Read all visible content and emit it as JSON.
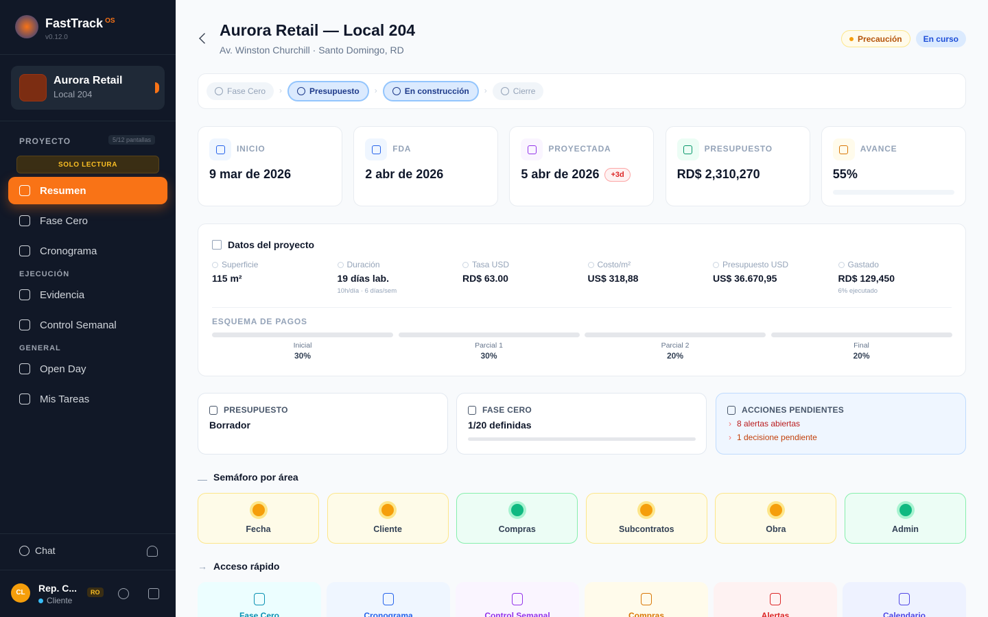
{
  "sidebar": {
    "brand": "FastTrack",
    "brand_badge": "OS",
    "version": "v0.12.0",
    "project": {
      "name": "Aurora Retail",
      "sub": "Local 204"
    },
    "section": "PROYECTO",
    "section_count": "5/12 pantallas",
    "readonly": "SOLO LECTURA",
    "groups": [
      {
        "title": null,
        "items": [
          {
            "label": "Resumen",
            "active": true
          },
          {
            "label": "Fase Cero",
            "active": false
          },
          {
            "label": "Cronograma",
            "active": false
          }
        ]
      },
      {
        "title": "EJECUCIÓN",
        "items": [
          {
            "label": "Evidencia",
            "active": false
          },
          {
            "label": "Control Semanal",
            "active": false
          }
        ]
      },
      {
        "title": "GENERAL",
        "items": [
          {
            "label": "Open Day",
            "active": false
          },
          {
            "label": "Mis Tareas",
            "active": false
          }
        ]
      }
    ],
    "chat": "Chat",
    "user": {
      "initials": "CL",
      "name": "Rep. C...",
      "role": "Cliente",
      "badge": "RO"
    }
  },
  "header": {
    "title": "Aurora Retail — Local 204",
    "subtitle": "Av. Winston Churchill · Santo Domingo, RD",
    "badges": [
      {
        "label": "Precaución",
        "tone": "amber"
      },
      {
        "label": "En curso",
        "tone": "blue"
      }
    ]
  },
  "phases": [
    {
      "label": "Fase Cero",
      "highlighted": false
    },
    {
      "label": "Presupuesto",
      "highlighted": true
    },
    {
      "label": "En construcción",
      "highlighted": true
    },
    {
      "label": "Cierre",
      "highlighted": false
    }
  ],
  "stats": [
    {
      "label": "INICIO",
      "value": "9 mar de 2026",
      "tone": "blue"
    },
    {
      "label": "FDA",
      "value": "2 abr de 2026",
      "tone": "blue"
    },
    {
      "label": "PROYECTADA",
      "value": "5 abr de 2026",
      "tag": "+3d",
      "tone": "purple"
    },
    {
      "label": "PRESUPUESTO",
      "value": "RD$ 2,310,270",
      "tone": "green"
    },
    {
      "label": "AVANCE",
      "value": "55%",
      "tone": "amber",
      "progress": true
    }
  ],
  "details": {
    "title": "Datos del proyecto",
    "fields": [
      {
        "label": "Superficie",
        "value": "115 m²"
      },
      {
        "label": "Duración",
        "value": "19 días lab.",
        "note": "10h/día · 6 días/sem"
      },
      {
        "label": "Tasa USD",
        "value": "RD$ 63.00"
      },
      {
        "label": "Costo/m²",
        "value": "US$ 318,88"
      },
      {
        "label": "Presupuesto USD",
        "value": "US$ 36.670,95"
      },
      {
        "label": "Gastado",
        "value": "RD$ 129,450",
        "note": "6% ejecutado"
      }
    ],
    "payments_title": "ESQUEMA DE PAGOS",
    "payments": [
      {
        "label": "Inicial",
        "value": "30%"
      },
      {
        "label": "Parcial 1",
        "value": "30%"
      },
      {
        "label": "Parcial 2",
        "value": "20%"
      },
      {
        "label": "Final",
        "value": "20%"
      }
    ]
  },
  "summary": {
    "budget": {
      "label": "PRESUPUESTO",
      "value": "Borrador"
    },
    "phase0": {
      "label": "FASE CERO",
      "value": "1/20 definidas"
    },
    "actions": {
      "label": "ACCIONES PENDIENTES",
      "items": [
        "8 alertas abiertas",
        "1 decisione pendiente"
      ]
    }
  },
  "traffic": {
    "title": "Semáforo por área",
    "items": [
      {
        "label": "Fecha",
        "status": "amber"
      },
      {
        "label": "Cliente",
        "status": "amber"
      },
      {
        "label": "Compras",
        "status": "green"
      },
      {
        "label": "Subcontratos",
        "status": "amber"
      },
      {
        "label": "Obra",
        "status": "amber"
      },
      {
        "label": "Admin",
        "status": "green"
      }
    ]
  },
  "quick": {
    "title": "Acceso rápido",
    "items": [
      {
        "label": "Fase Cero",
        "tone": "cyan"
      },
      {
        "label": "Cronograma",
        "tone": "blue"
      },
      {
        "label": "Control Semanal",
        "tone": "purple"
      },
      {
        "label": "Compras",
        "tone": "amber"
      },
      {
        "label": "Alertas",
        "tone": "red"
      },
      {
        "label": "Calendario",
        "tone": "indigo"
      }
    ]
  }
}
